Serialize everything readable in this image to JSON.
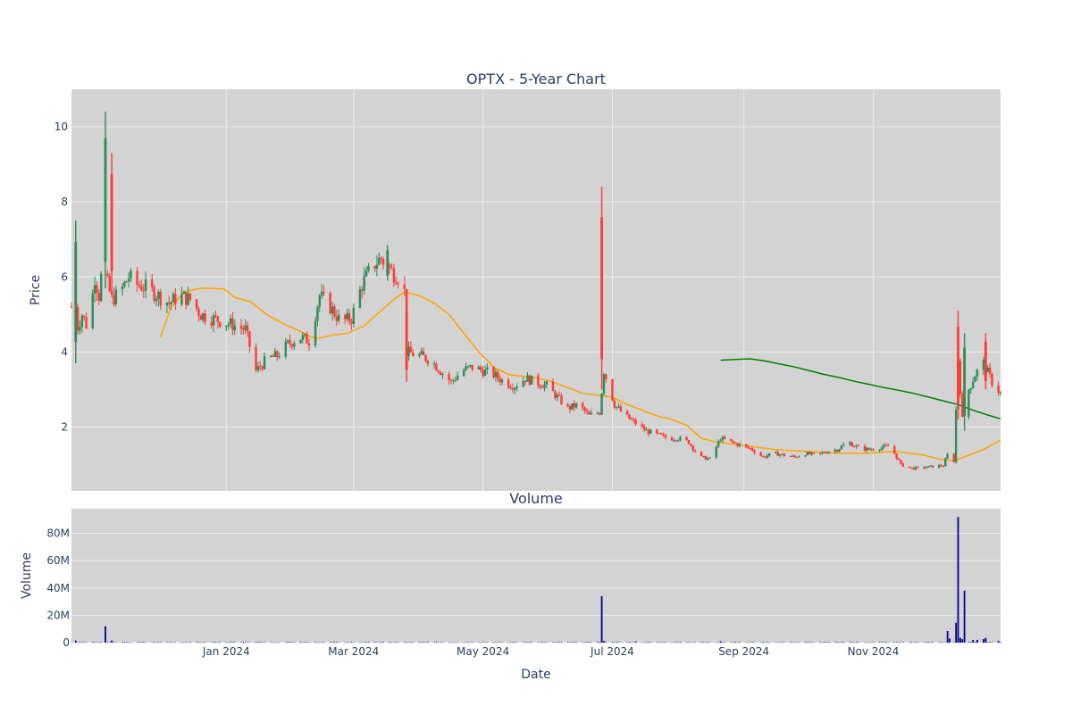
{
  "chart_data": [
    {
      "type": "candlestick",
      "title": "OPTX - 5-Year Chart",
      "ylabel": "Price",
      "ylim": [
        0.3,
        11.0
      ],
      "xlim": [
        "2023-10-20",
        "2024-12-31"
      ],
      "y_ticks": [
        2,
        4,
        6,
        8,
        10
      ],
      "x_ticks": [
        "2024-01-01",
        "2024-03-01",
        "2024-05-01",
        "2024-07-01",
        "2024-09-01",
        "2024-11-01"
      ],
      "x_tick_labels": [
        "Jan 2024",
        "Mar 2024",
        "May 2024",
        "Jul 2024",
        "Sep 2024",
        "Nov 2024"
      ],
      "grid": true,
      "background": "#d3d3d3",
      "up_color": "#2e8b57",
      "down_color": "#ff3b30",
      "close_path": [
        [
          "2023-10-20",
          5.2
        ],
        [
          "2023-10-22",
          4.5
        ],
        [
          "2023-10-25",
          5.0
        ],
        [
          "2023-10-28",
          4.6
        ],
        [
          "2023-10-31",
          6.0
        ],
        [
          "2023-11-02",
          5.5
        ],
        [
          "2023-11-04",
          6.5
        ],
        [
          "2023-11-06",
          5.8
        ],
        [
          "2023-11-08",
          5.4
        ],
        [
          "2023-11-12",
          5.6
        ],
        [
          "2023-11-16",
          6.0
        ],
        [
          "2023-11-20",
          5.8
        ],
        [
          "2023-11-25",
          5.7
        ],
        [
          "2023-11-30",
          5.5
        ],
        [
          "2023-12-05",
          5.3
        ],
        [
          "2023-12-10",
          5.5
        ],
        [
          "2023-12-15",
          5.4
        ],
        [
          "2023-12-20",
          5.0
        ],
        [
          "2023-12-25",
          4.9
        ],
        [
          "2023-12-31",
          4.8
        ],
        [
          "2024-01-05",
          4.7
        ],
        [
          "2024-01-10",
          4.6
        ],
        [
          "2024-01-15",
          3.5
        ],
        [
          "2024-01-20",
          3.8
        ],
        [
          "2024-01-25",
          3.9
        ],
        [
          "2024-01-30",
          4.2
        ],
        [
          "2024-02-04",
          4.4
        ],
        [
          "2024-02-09",
          4.3
        ],
        [
          "2024-02-14",
          5.5
        ],
        [
          "2024-02-19",
          5.2
        ],
        [
          "2024-02-24",
          4.8
        ],
        [
          "2024-02-29",
          4.9
        ],
        [
          "2024-03-05",
          5.8
        ],
        [
          "2024-03-10",
          6.3
        ],
        [
          "2024-03-14",
          6.5
        ],
        [
          "2024-03-18",
          6.2
        ],
        [
          "2024-03-22",
          6.0
        ],
        [
          "2024-03-25",
          5.6
        ],
        [
          "2024-03-26",
          4.0
        ],
        [
          "2024-04-01",
          3.9
        ],
        [
          "2024-04-06",
          3.8
        ],
        [
          "2024-04-11",
          3.5
        ],
        [
          "2024-04-16",
          3.2
        ],
        [
          "2024-04-21",
          3.5
        ],
        [
          "2024-04-26",
          3.6
        ],
        [
          "2024-05-01",
          3.5
        ],
        [
          "2024-05-06",
          3.4
        ],
        [
          "2024-05-11",
          3.2
        ],
        [
          "2024-05-16",
          3.1
        ],
        [
          "2024-05-21",
          3.3
        ],
        [
          "2024-05-26",
          3.2
        ],
        [
          "2024-05-31",
          3.1
        ],
        [
          "2024-06-05",
          2.8
        ],
        [
          "2024-06-10",
          2.5
        ],
        [
          "2024-06-15",
          2.6
        ],
        [
          "2024-06-20",
          2.3
        ],
        [
          "2024-06-25",
          2.4
        ],
        [
          "2024-06-27",
          3.5
        ],
        [
          "2024-07-02",
          2.6
        ],
        [
          "2024-07-07",
          2.3
        ],
        [
          "2024-07-12",
          2.1
        ],
        [
          "2024-07-17",
          1.9
        ],
        [
          "2024-07-22",
          1.8
        ],
        [
          "2024-07-27",
          1.7
        ],
        [
          "2024-08-01",
          1.7
        ],
        [
          "2024-08-06",
          1.6
        ],
        [
          "2024-08-11",
          1.2
        ],
        [
          "2024-08-16",
          1.15
        ],
        [
          "2024-08-21",
          1.7
        ],
        [
          "2024-08-26",
          1.6
        ],
        [
          "2024-08-31",
          1.5
        ],
        [
          "2024-09-05",
          1.4
        ],
        [
          "2024-09-10",
          1.2
        ],
        [
          "2024-09-15",
          1.3
        ],
        [
          "2024-09-20",
          1.25
        ],
        [
          "2024-09-25",
          1.2
        ],
        [
          "2024-09-30",
          1.3
        ],
        [
          "2024-10-05",
          1.25
        ],
        [
          "2024-10-10",
          1.35
        ],
        [
          "2024-10-15",
          1.4
        ],
        [
          "2024-10-20",
          1.6
        ],
        [
          "2024-10-25",
          1.45
        ],
        [
          "2024-10-30",
          1.4
        ],
        [
          "2024-11-04",
          1.45
        ],
        [
          "2024-11-09",
          1.5
        ],
        [
          "2024-11-14",
          1.0
        ],
        [
          "2024-11-19",
          0.9
        ],
        [
          "2024-11-24",
          0.92
        ],
        [
          "2024-11-29",
          0.95
        ],
        [
          "2024-12-04",
          0.98
        ],
        [
          "2024-12-07",
          1.4
        ],
        [
          "2024-12-09",
          1.1
        ],
        [
          "2024-12-11",
          3.8
        ],
        [
          "2024-12-13",
          2.2
        ],
        [
          "2024-12-16",
          3.0
        ],
        [
          "2024-12-19",
          3.4
        ],
        [
          "2024-12-23",
          3.7
        ],
        [
          "2024-12-27",
          3.2
        ],
        [
          "2024-12-31",
          2.9
        ]
      ],
      "spikes": [
        {
          "date": "2023-11-05",
          "high": 10.4,
          "low": 5.7,
          "color": "up"
        },
        {
          "date": "2023-11-08",
          "high": 9.3,
          "low": 5.6,
          "color": "down"
        },
        {
          "date": "2023-10-22",
          "high": 7.5,
          "low": 3.7,
          "color": "up"
        },
        {
          "date": "2024-03-17",
          "high": 6.85,
          "low": 5.9,
          "color": "up"
        },
        {
          "date": "2024-03-26",
          "high": 5.4,
          "low": 3.2,
          "color": "down"
        },
        {
          "date": "2024-06-26",
          "high": 8.4,
          "low": 3.0,
          "color": "down"
        },
        {
          "date": "2024-12-11",
          "high": 5.1,
          "low": 2.2,
          "color": "down"
        },
        {
          "date": "2024-12-14",
          "high": 4.5,
          "low": 1.9,
          "color": "up"
        },
        {
          "date": "2024-12-24",
          "high": 4.5,
          "low": 3.0,
          "color": "down"
        }
      ],
      "overlays": [
        {
          "color": "#ffa500",
          "points": [
            [
              "2023-12-01",
              4.4
            ],
            [
              "2023-12-06",
              5.2
            ],
            [
              "2023-12-12",
              5.6
            ],
            [
              "2023-12-20",
              5.7
            ],
            [
              "2023-12-31",
              5.68
            ],
            [
              "2024-01-05",
              5.45
            ],
            [
              "2024-01-12",
              5.35
            ],
            [
              "2024-01-20",
              5.0
            ],
            [
              "2024-01-28",
              4.75
            ],
            [
              "2024-02-05",
              4.55
            ],
            [
              "2024-02-12",
              4.35
            ],
            [
              "2024-02-20",
              4.45
            ],
            [
              "2024-02-27",
              4.5
            ],
            [
              "2024-03-06",
              4.7
            ],
            [
              "2024-03-14",
              5.1
            ],
            [
              "2024-03-20",
              5.4
            ],
            [
              "2024-03-25",
              5.6
            ],
            [
              "2024-04-01",
              5.5
            ],
            [
              "2024-04-08",
              5.3
            ],
            [
              "2024-04-15",
              5.0
            ],
            [
              "2024-04-22",
              4.5
            ],
            [
              "2024-04-29",
              4.0
            ],
            [
              "2024-05-06",
              3.6
            ],
            [
              "2024-05-13",
              3.4
            ],
            [
              "2024-05-20",
              3.35
            ],
            [
              "2024-05-27",
              3.3
            ],
            [
              "2024-06-03",
              3.2
            ],
            [
              "2024-06-10",
              3.05
            ],
            [
              "2024-06-17",
              2.9
            ],
            [
              "2024-06-24",
              2.85
            ],
            [
              "2024-07-01",
              2.8
            ],
            [
              "2024-07-08",
              2.6
            ],
            [
              "2024-07-15",
              2.45
            ],
            [
              "2024-07-22",
              2.3
            ],
            [
              "2024-07-29",
              2.2
            ],
            [
              "2024-08-05",
              2.05
            ],
            [
              "2024-08-12",
              1.7
            ],
            [
              "2024-08-19",
              1.6
            ],
            [
              "2024-08-26",
              1.55
            ],
            [
              "2024-09-02",
              1.5
            ],
            [
              "2024-09-16",
              1.4
            ],
            [
              "2024-09-30",
              1.35
            ],
            [
              "2024-10-14",
              1.3
            ],
            [
              "2024-10-28",
              1.3
            ],
            [
              "2024-11-11",
              1.35
            ],
            [
              "2024-11-25",
              1.25
            ],
            [
              "2024-12-02",
              1.15
            ],
            [
              "2024-12-09",
              1.1
            ],
            [
              "2024-12-16",
              1.25
            ],
            [
              "2024-12-23",
              1.4
            ],
            [
              "2024-12-31",
              1.65
            ]
          ]
        },
        {
          "color": "#008000",
          "points": [
            [
              "2024-08-21",
              3.78
            ],
            [
              "2024-08-28",
              3.8
            ],
            [
              "2024-09-04",
              3.82
            ],
            [
              "2024-09-11",
              3.76
            ],
            [
              "2024-09-18",
              3.68
            ],
            [
              "2024-09-25",
              3.6
            ],
            [
              "2024-10-02",
              3.5
            ],
            [
              "2024-10-09",
              3.4
            ],
            [
              "2024-10-16",
              3.32
            ],
            [
              "2024-10-23",
              3.22
            ],
            [
              "2024-10-30",
              3.14
            ],
            [
              "2024-11-06",
              3.05
            ],
            [
              "2024-11-13",
              2.98
            ],
            [
              "2024-11-20",
              2.9
            ],
            [
              "2024-11-27",
              2.8
            ],
            [
              "2024-12-04",
              2.7
            ],
            [
              "2024-12-11",
              2.6
            ],
            [
              "2024-12-18",
              2.45
            ],
            [
              "2024-12-25",
              2.32
            ],
            [
              "2024-12-31",
              2.22
            ]
          ]
        }
      ]
    },
    {
      "type": "bar",
      "title": "Volume",
      "ylabel": "Volume",
      "xlabel": "Date",
      "ylim": [
        0,
        98000000
      ],
      "y_ticks": [
        0,
        20000000,
        40000000,
        60000000,
        80000000
      ],
      "y_tick_labels": [
        "0",
        "20M",
        "40M",
        "60M",
        "80M"
      ],
      "bar_color": "#00008b",
      "background": "#d3d3d3",
      "grid": true,
      "bars": [
        [
          "2023-10-22",
          1500000
        ],
        [
          "2023-11-05",
          12000000
        ],
        [
          "2023-11-08",
          1500000
        ],
        [
          "2024-06-26",
          34000000
        ],
        [
          "2024-06-27",
          1200000
        ],
        [
          "2024-07-12",
          800000
        ],
        [
          "2024-08-21",
          900000
        ],
        [
          "2024-12-06",
          8500000
        ],
        [
          "2024-12-07",
          3000000
        ],
        [
          "2024-12-10",
          14500000
        ],
        [
          "2024-12-11",
          92000000
        ],
        [
          "2024-12-12",
          3500000
        ],
        [
          "2024-12-13",
          2500000
        ],
        [
          "2024-12-14",
          38000000
        ],
        [
          "2024-12-18",
          2000000
        ],
        [
          "2024-12-20",
          2000000
        ],
        [
          "2024-12-23",
          2500000
        ],
        [
          "2024-12-24",
          3500000
        ],
        [
          "2024-12-30",
          1200000
        ]
      ]
    }
  ]
}
